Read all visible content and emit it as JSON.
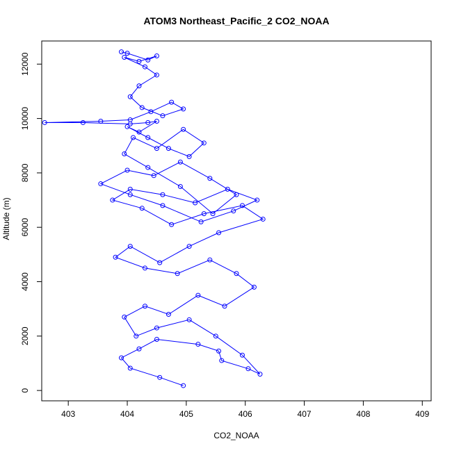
{
  "chart_data": {
    "type": "line",
    "title": "ATOM3 Northeast_Pacific_2 CO2_NOAA",
    "xlabel": "CO2_NOAA",
    "ylabel": "Altitude (m)",
    "xlim": [
      402.55,
      409.15
    ],
    "ylim": [
      -380,
      12850
    ],
    "xticks": [
      403,
      404,
      405,
      406,
      407,
      408,
      409
    ],
    "yticks": [
      0,
      2000,
      4000,
      6000,
      8000,
      10000,
      12000
    ],
    "color": "#0000ff",
    "marker": "open-circle",
    "grid": false,
    "series": [
      {
        "x": [
          404.95,
          404.55,
          404.05,
          403.9,
          404.2,
          404.5,
          405.2,
          405.55,
          405.6,
          406.05,
          406.25,
          405.95,
          405.5,
          405.05,
          404.5,
          404.15,
          403.95,
          404.3,
          404.7,
          405.2,
          405.65,
          406.15,
          405.85,
          405.4,
          404.85,
          404.3,
          403.8,
          404.05,
          404.55,
          405.05,
          405.55,
          406.3,
          405.95,
          405.3,
          404.75,
          404.25,
          403.75,
          404.05,
          404.6,
          405.15,
          405.7,
          406.2,
          405.8,
          405.25,
          404.6,
          404.05,
          403.55,
          404.0,
          404.45,
          404.9,
          405.4,
          405.85,
          405.45,
          404.9,
          404.35,
          403.95,
          404.1,
          404.5,
          404.95,
          405.3,
          405.05,
          404.7,
          404.35,
          404.0,
          404.2,
          404.5,
          404.35,
          404.05,
          403.25,
          402.6,
          403.55,
          404.05,
          404.4,
          404.75,
          404.95,
          404.6,
          404.25,
          404.05,
          404.2,
          404.5,
          404.3,
          403.95,
          404.2,
          404.5,
          404.35,
          404.0,
          403.9
        ],
        "y": [
          180,
          480,
          820,
          1200,
          1530,
          1880,
          1700,
          1450,
          1100,
          800,
          600,
          1300,
          2000,
          2600,
          2300,
          2000,
          2700,
          3100,
          2800,
          3500,
          3100,
          3800,
          4300,
          4800,
          4300,
          4500,
          4900,
          5300,
          4700,
          5300,
          5800,
          6300,
          6800,
          6500,
          6100,
          6700,
          7000,
          7400,
          7200,
          6900,
          7400,
          7000,
          6600,
          6200,
          6800,
          7200,
          7600,
          8100,
          7900,
          8400,
          7800,
          7200,
          6500,
          7500,
          8200,
          8700,
          9300,
          8900,
          9600,
          9100,
          8600,
          8900,
          9300,
          9700,
          9500,
          9900,
          9850,
          9800,
          9850,
          9850,
          9900,
          9950,
          10250,
          10600,
          10350,
          10100,
          10400,
          10800,
          11200,
          11600,
          11900,
          12250,
          12100,
          12300,
          12150,
          12400,
          12450
        ]
      }
    ]
  }
}
